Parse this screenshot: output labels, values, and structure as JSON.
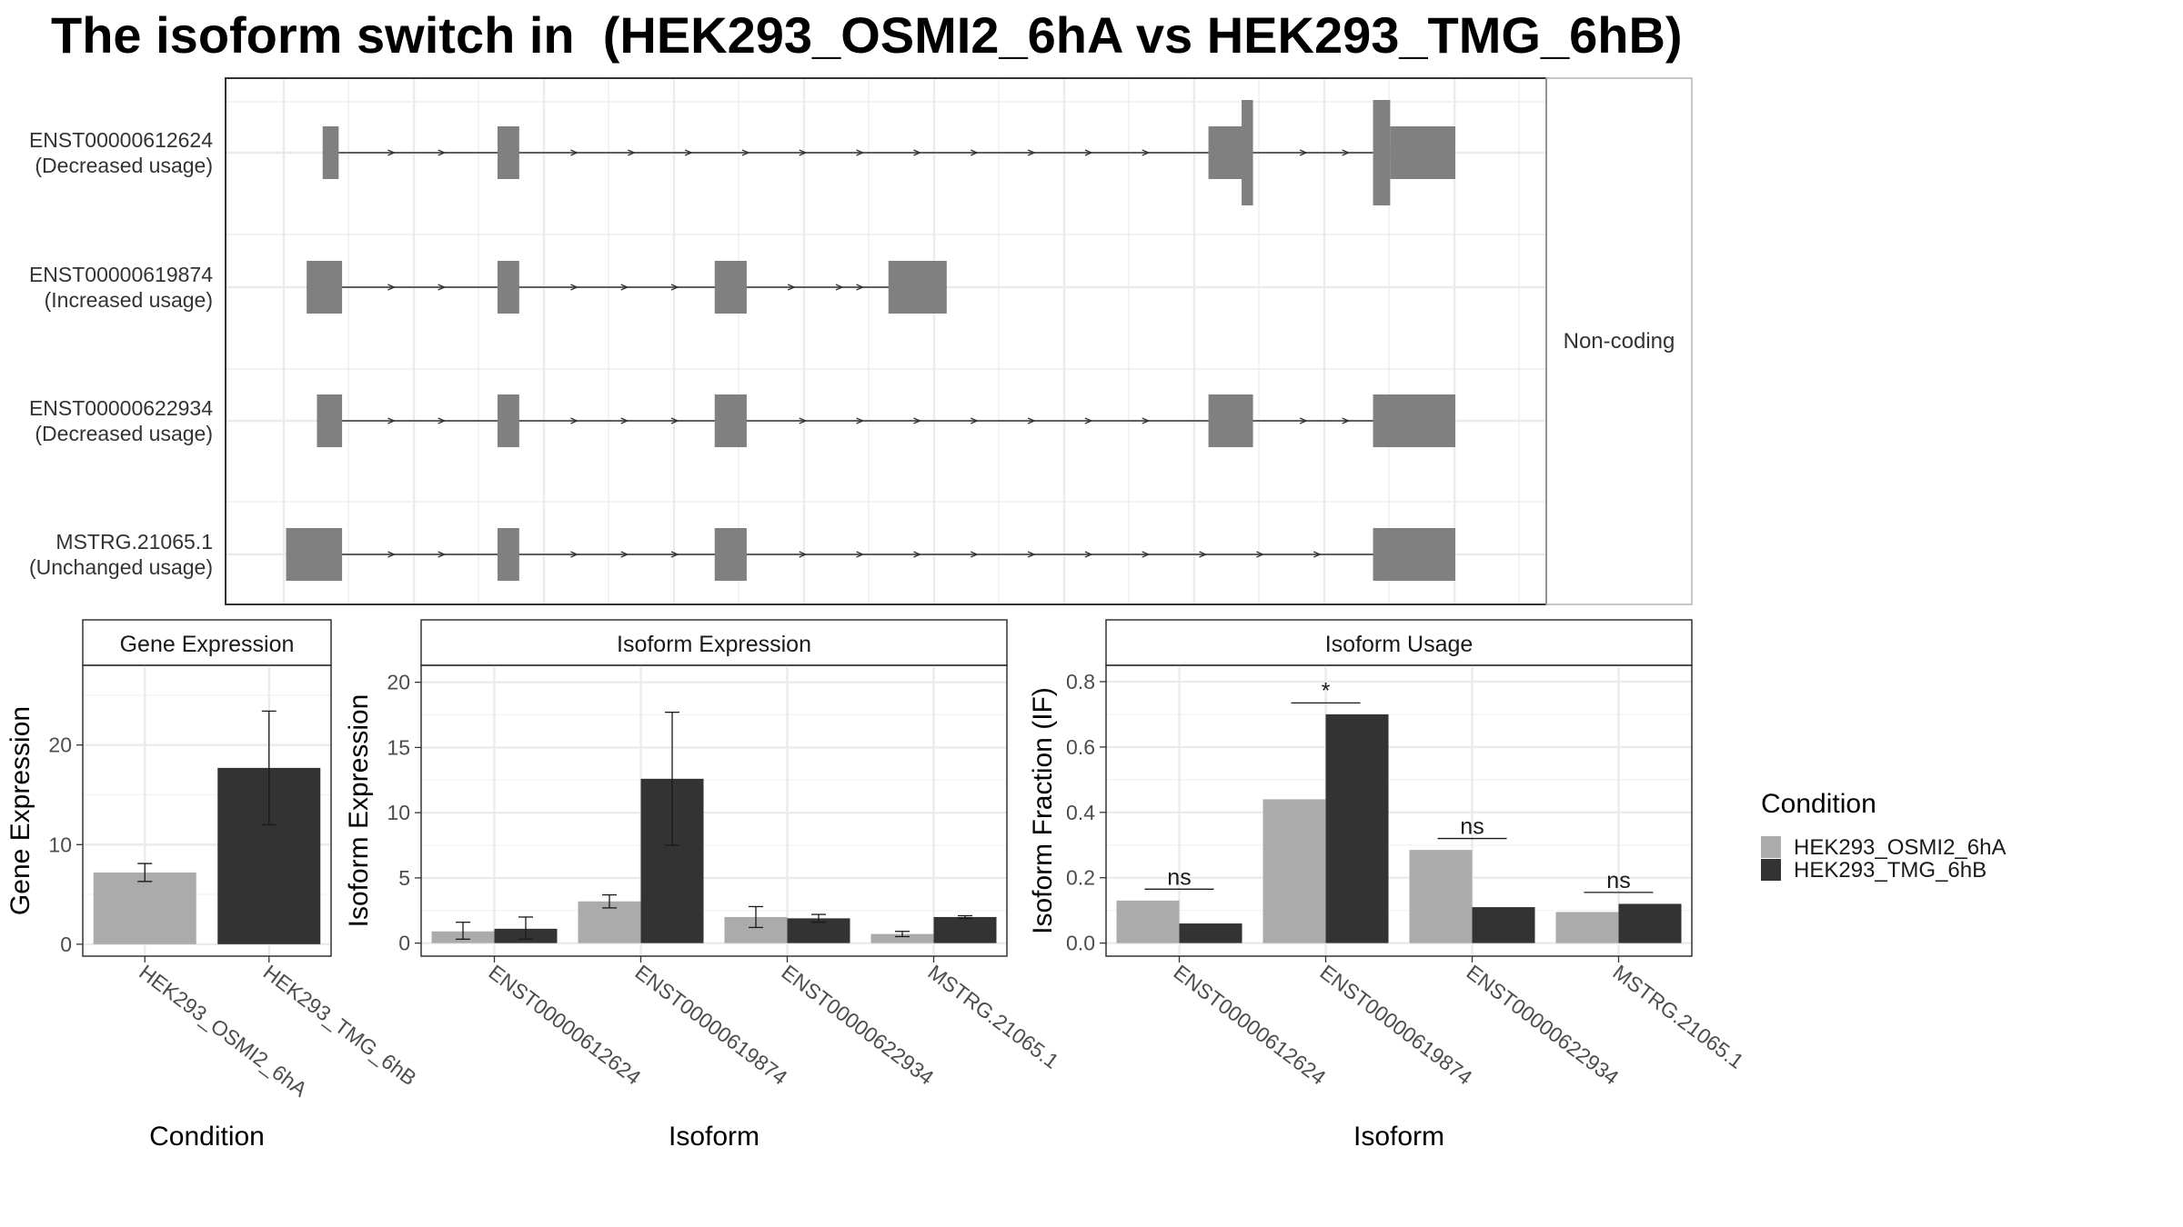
{
  "title": "The isoform switch in  (HEK293_OSMI2_6hA vs HEK293_TMG_6hB)",
  "colors": {
    "condition_a": "#ababab",
    "condition_b": "#333333",
    "exon": "#808080",
    "intron": "#333333",
    "grid": "#ebebeb",
    "panel_border": "#333333"
  },
  "structure": {
    "side_label": "Non-coding",
    "transcripts": [
      {
        "id": "ENST00000612624",
        "usage": "(Decreased usage)",
        "exons": [
          [
            0.034,
            0.048,
            "full"
          ],
          [
            0.187,
            0.206,
            "full"
          ],
          [
            0.809,
            0.838,
            "full"
          ],
          [
            0.838,
            0.848,
            "tall"
          ],
          [
            0.953,
            0.968,
            "tall"
          ],
          [
            0.968,
            1.025,
            "full"
          ]
        ],
        "arrows": [
          0.095,
          0.139,
          0.255,
          0.305,
          0.355,
          0.405,
          0.455,
          0.505,
          0.555,
          0.605,
          0.655,
          0.705,
          0.755,
          0.893,
          0.93
        ]
      },
      {
        "id": "ENST00000619874",
        "usage": "(Increased usage)",
        "exons": [
          [
            0.02,
            0.051,
            "full"
          ],
          [
            0.187,
            0.206,
            "full"
          ],
          [
            0.377,
            0.405,
            "full"
          ],
          [
            0.529,
            0.58,
            "full"
          ]
        ],
        "arrows": [
          0.095,
          0.139,
          0.255,
          0.299,
          0.343,
          0.445,
          0.487,
          0.505
        ]
      },
      {
        "id": "ENST00000622934",
        "usage": "(Decreased usage)",
        "exons": [
          [
            0.029,
            0.051,
            "full"
          ],
          [
            0.187,
            0.206,
            "full"
          ],
          [
            0.377,
            0.405,
            "full"
          ],
          [
            0.809,
            0.848,
            "full"
          ],
          [
            0.953,
            1.025,
            "full"
          ]
        ],
        "arrows": [
          0.095,
          0.139,
          0.255,
          0.299,
          0.343,
          0.455,
          0.505,
          0.555,
          0.605,
          0.655,
          0.705,
          0.755,
          0.893,
          0.93
        ]
      },
      {
        "id": "MSTRG.21065.1",
        "usage": "(Unchanged usage)",
        "exons": [
          [
            0.002,
            0.051,
            "full"
          ],
          [
            0.187,
            0.206,
            "full"
          ],
          [
            0.377,
            0.405,
            "full"
          ],
          [
            0.953,
            1.025,
            "full"
          ]
        ],
        "arrows": [
          0.095,
          0.139,
          0.255,
          0.299,
          0.343,
          0.455,
          0.505,
          0.555,
          0.605,
          0.655,
          0.705,
          0.755,
          0.805,
          0.855,
          0.905
        ]
      }
    ]
  },
  "chart_data": [
    {
      "type": "bar",
      "title": "Gene Expression",
      "xlabel": "Condition",
      "ylabel": "Gene Expression",
      "ylim": [
        -1.2,
        28
      ],
      "yticks": [
        0,
        10,
        20
      ],
      "categories": [
        "HEK293_OSMI2_6hA",
        "HEK293_TMG_6hB"
      ],
      "series": [
        {
          "condition": "a",
          "values": [
            7.2,
            null
          ],
          "err_low": [
            6.3,
            null
          ],
          "err_high": [
            8.1,
            null
          ]
        },
        {
          "condition": "b",
          "values": [
            null,
            17.7
          ],
          "err_low": [
            null,
            12.0
          ],
          "err_high": [
            null,
            23.4
          ]
        }
      ]
    },
    {
      "type": "bar",
      "title": "Isoform Expression",
      "xlabel": "Isoform",
      "ylabel": "Isoform Expression",
      "ylim": [
        -1.0,
        21.3
      ],
      "yticks": [
        0,
        5,
        10,
        15,
        20
      ],
      "categories": [
        "ENST00000612624",
        "ENST00000619874",
        "ENST00000622934",
        "MSTRG.21065.1"
      ],
      "series": [
        {
          "condition": "a",
          "values": [
            0.9,
            3.2,
            2.0,
            0.7
          ],
          "err_low": [
            0.3,
            2.7,
            1.2,
            0.5
          ],
          "err_high": [
            1.6,
            3.7,
            2.8,
            0.9
          ]
        },
        {
          "condition": "b",
          "values": [
            1.1,
            12.6,
            1.9,
            2.0
          ],
          "err_low": [
            0.3,
            7.5,
            1.6,
            1.9
          ],
          "err_high": [
            2.0,
            17.7,
            2.2,
            2.1
          ]
        }
      ]
    },
    {
      "type": "bar",
      "title": "Isoform Usage",
      "xlabel": "Isoform",
      "ylabel": "Isoform Fraction (IF)",
      "ylim": [
        -0.04,
        0.85
      ],
      "yticks": [
        "0.0",
        "0.2",
        "0.4",
        "0.6",
        "0.8"
      ],
      "categories": [
        "ENST00000612624",
        "ENST00000619874",
        "ENST00000622934",
        "MSTRG.21065.1"
      ],
      "series": [
        {
          "condition": "a",
          "values": [
            0.13,
            0.44,
            0.285,
            0.095
          ]
        },
        {
          "condition": "b",
          "values": [
            0.06,
            0.7,
            0.11,
            0.12
          ]
        }
      ],
      "significance": [
        {
          "label": "ns",
          "y": 0.165
        },
        {
          "label": "*",
          "y": 0.735
        },
        {
          "label": "ns",
          "y": 0.32
        },
        {
          "label": "ns",
          "y": 0.155
        }
      ]
    }
  ],
  "legend": {
    "title": "Condition",
    "items": [
      {
        "label": "HEK293_OSMI2_6hA",
        "condition": "a"
      },
      {
        "label": "HEK293_TMG_6hB",
        "condition": "b"
      }
    ]
  }
}
